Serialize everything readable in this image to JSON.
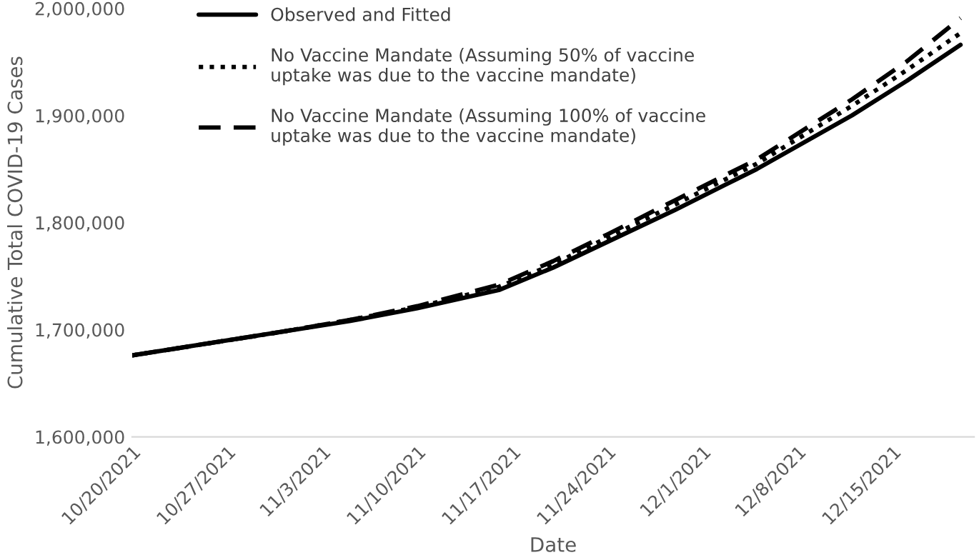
{
  "chart_data": {
    "type": "line",
    "xlabel": "Date",
    "ylabel": "Cumulative Total COVID-19 Cases",
    "x": [
      "2021-10-20",
      "2021-10-25",
      "2021-10-31",
      "2021-11-05",
      "2021-11-10",
      "2021-11-16",
      "2021-11-20",
      "2021-11-24",
      "2021-11-29",
      "2021-12-05",
      "2021-12-12",
      "2021-12-16",
      "2021-12-20"
    ],
    "series": [
      {
        "name": "Observed and Fitted",
        "color": "#000000",
        "line_style": "solid",
        "values": [
          1676000,
          1686000,
          1698000,
          1708000,
          1720000,
          1737000,
          1758000,
          1782000,
          1812000,
          1850000,
          1900000,
          1932000,
          1966000
        ]
      },
      {
        "name": "No Vaccine Mandate (Assuming 50% of vaccine\nuptake was due to the vaccine mandate)",
        "color": "#000000",
        "line_style": "dotted",
        "values": [
          1676000,
          1686000,
          1698000,
          1709000,
          1721000,
          1740000,
          1761000,
          1786000,
          1817000,
          1855000,
          1909000,
          1942000,
          1977000
        ]
      },
      {
        "name": "No Vaccine Mandate (Assuming 100% of vaccine\nuptake was due to the vaccine mandate)",
        "color": "#000000",
        "line_style": "dashed",
        "values": [
          1676000,
          1686000,
          1698000,
          1709000,
          1722000,
          1742000,
          1764000,
          1789000,
          1821000,
          1859000,
          1915000,
          1950000,
          1991000
        ]
      }
    ],
    "xlim": [
      "2021-10-20",
      "2021-12-21"
    ],
    "xticks": [
      {
        "value": "2021-10-20",
        "label": "10/20/2021"
      },
      {
        "value": "2021-10-27",
        "label": "10/27/2021"
      },
      {
        "value": "2021-11-03",
        "label": "11/3/2021"
      },
      {
        "value": "2021-11-10",
        "label": "11/10/2021"
      },
      {
        "value": "2021-11-17",
        "label": "11/17/2021"
      },
      {
        "value": "2021-11-24",
        "label": "11/24/2021"
      },
      {
        "value": "2021-12-01",
        "label": "12/1/2021"
      },
      {
        "value": "2021-12-08",
        "label": "12/8/2021"
      },
      {
        "value": "2021-12-15",
        "label": "12/15/2021"
      }
    ],
    "ylim": [
      1600000,
      2000000
    ],
    "yticks": [
      {
        "value": 1600000,
        "label": "1,600,000"
      },
      {
        "value": 1700000,
        "label": "1,700,000"
      },
      {
        "value": 1800000,
        "label": "1,800,000"
      },
      {
        "value": 1900000,
        "label": "1,900,000"
      },
      {
        "value": 2000000,
        "label": "2,000,000"
      }
    ],
    "grid": false,
    "legend": "top left",
    "marker": "none"
  }
}
